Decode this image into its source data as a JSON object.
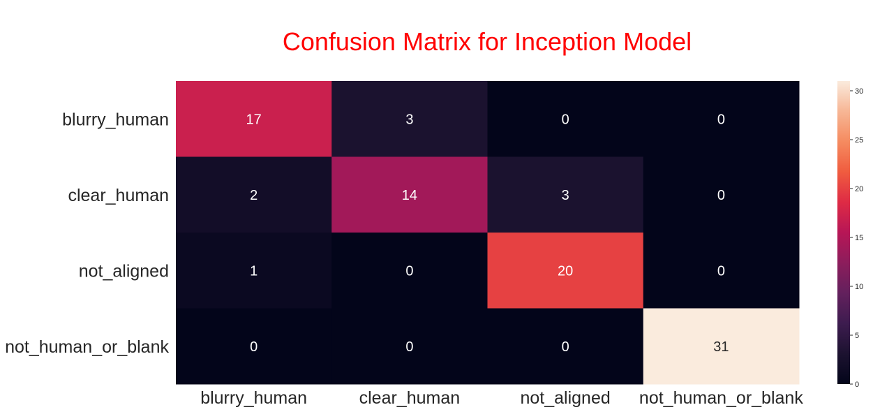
{
  "chart_data": {
    "type": "heatmap",
    "title": "Confusion Matrix for Inception Model",
    "row_labels": [
      "blurry_human",
      "clear_human",
      "not_aligned",
      "not_human_or_blank"
    ],
    "col_labels": [
      "blurry_human",
      "clear_human",
      "not_aligned",
      "not_human_or_blank"
    ],
    "values": [
      [
        17,
        3,
        0,
        0
      ],
      [
        2,
        14,
        3,
        0
      ],
      [
        1,
        0,
        20,
        0
      ],
      [
        0,
        0,
        0,
        31
      ]
    ],
    "colorbar": {
      "min": 0,
      "max": 31,
      "ticks": [
        0,
        5,
        10,
        15,
        20,
        25,
        30
      ],
      "tick_labels": [
        "0",
        "5",
        "10",
        "15",
        "20",
        "25",
        "30"
      ]
    },
    "colormap": "rocket",
    "annotations_shown": true
  }
}
